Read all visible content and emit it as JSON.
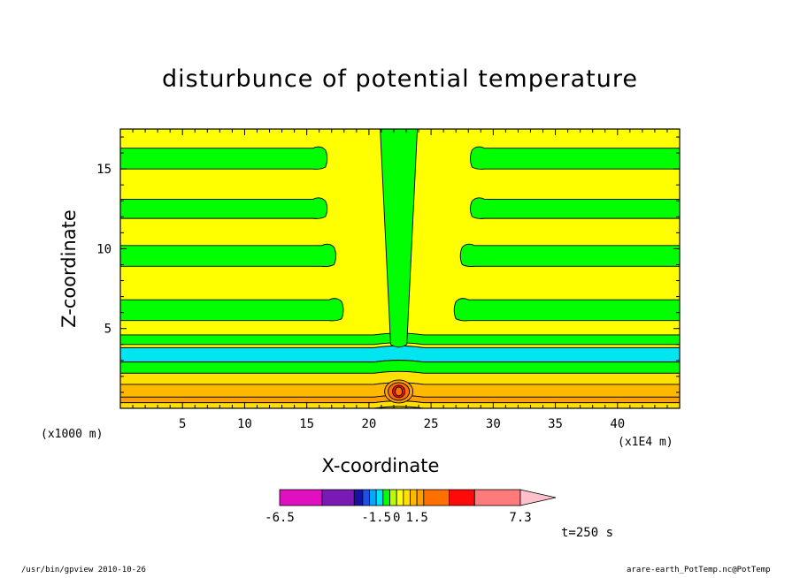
{
  "chart_data": {
    "type": "heatmap",
    "title": "disturbunce of potential temperature",
    "xlabel": "X-coordinate",
    "ylabel": "Z-coordinate",
    "x_unit_note": "(x1000 m)",
    "x_scale_note": "(x1E4 m)",
    "time_label": "t=250 s",
    "xlim": [
      0,
      45
    ],
    "ylim": [
      0,
      17.5
    ],
    "x_ticks": [
      5,
      10,
      15,
      20,
      25,
      30,
      35,
      40
    ],
    "y_ticks": [
      5,
      10,
      15
    ],
    "colorbar": {
      "labels": [
        {
          "text": "-6.5",
          "value": -6.5
        },
        {
          "text": "-1.5",
          "value": -1.5
        },
        {
          "text": "0",
          "value": 0
        },
        {
          "text": "1.5",
          "value": 1.5
        },
        {
          "text": "7.3",
          "value": 7.3
        }
      ],
      "bins": [
        {
          "from": -6.5,
          "to": -5.0,
          "color": "#e010c0"
        },
        {
          "from": -5.0,
          "to": -3.0,
          "color": "#7a1ab4"
        },
        {
          "from": -3.0,
          "to": -2.5,
          "color": "#1414a0"
        },
        {
          "from": -2.5,
          "to": -2.0,
          "color": "#1e50e6"
        },
        {
          "from": -2.0,
          "to": -1.5,
          "color": "#00aaff"
        },
        {
          "from": -1.5,
          "to": -1.0,
          "color": "#00e5f0"
        },
        {
          "from": -1.0,
          "to": -0.5,
          "color": "#00ff00"
        },
        {
          "from": -0.5,
          "to": 0.0,
          "color": "#b4ff00"
        },
        {
          "from": 0.0,
          "to": 0.5,
          "color": "#ffff00"
        },
        {
          "from": 0.5,
          "to": 1.0,
          "color": "#ffe000"
        },
        {
          "from": 1.0,
          "to": 1.5,
          "color": "#ffb800"
        },
        {
          "from": 1.5,
          "to": 2.0,
          "color": "#ffa000"
        },
        {
          "from": 2.0,
          "to": 3.5,
          "color": "#ff7000"
        },
        {
          "from": 3.5,
          "to": 5.0,
          "color": "#ff0a0a"
        },
        {
          "from": 5.0,
          "to": 7.3,
          "color": "#ff7a7a"
        }
      ],
      "overflow_color": "#ffc0cb"
    },
    "background_color": "#ffff00",
    "horizontal_bands": [
      {
        "z_from": 15.0,
        "z_to": 16.3,
        "color": "#00ff00",
        "left_end_x": 16.5,
        "right_start_x": 28.3
      },
      {
        "z_from": 11.9,
        "z_to": 13.1,
        "color": "#00ff00",
        "left_end_x": 16.5,
        "right_start_x": 28.3
      },
      {
        "z_from": 8.9,
        "z_to": 10.2,
        "color": "#00ff00",
        "left_end_x": 17.2,
        "right_start_x": 27.5
      },
      {
        "z_from": 5.5,
        "z_to": 6.8,
        "color": "#00ff00",
        "left_end_x": 17.8,
        "right_start_x": 27.0
      },
      {
        "z_from": 4.0,
        "z_to": 4.6,
        "color": "#00ff00"
      },
      {
        "z_from": 2.9,
        "z_to": 3.8,
        "color": "#00e5f0"
      },
      {
        "z_from": 2.2,
        "z_to": 2.9,
        "color": "#00ff00"
      },
      {
        "z_from": 1.5,
        "z_to": 2.2,
        "color": "#ffe000"
      },
      {
        "z_from": 0.7,
        "z_to": 1.5,
        "color": "#ffb800"
      },
      {
        "z_from": 0.35,
        "z_to": 0.7,
        "color": "#ffa000"
      },
      {
        "z_from": 0.0,
        "z_to": 0.35,
        "color": "#ffe000"
      }
    ],
    "plume": {
      "x_center": 22.4,
      "z_base": 4.0,
      "width_base": 1.3,
      "width_top": 3.0,
      "color": "#00ff00"
    },
    "bottom_bubble": {
      "x_center": 22.4,
      "z_center": 1.0,
      "peak": 7.3
    }
  },
  "footer": {
    "left": "/usr/bin/gpview   2010-10-26",
    "right": "arare-earth_PotTemp.nc@PotTemp"
  }
}
